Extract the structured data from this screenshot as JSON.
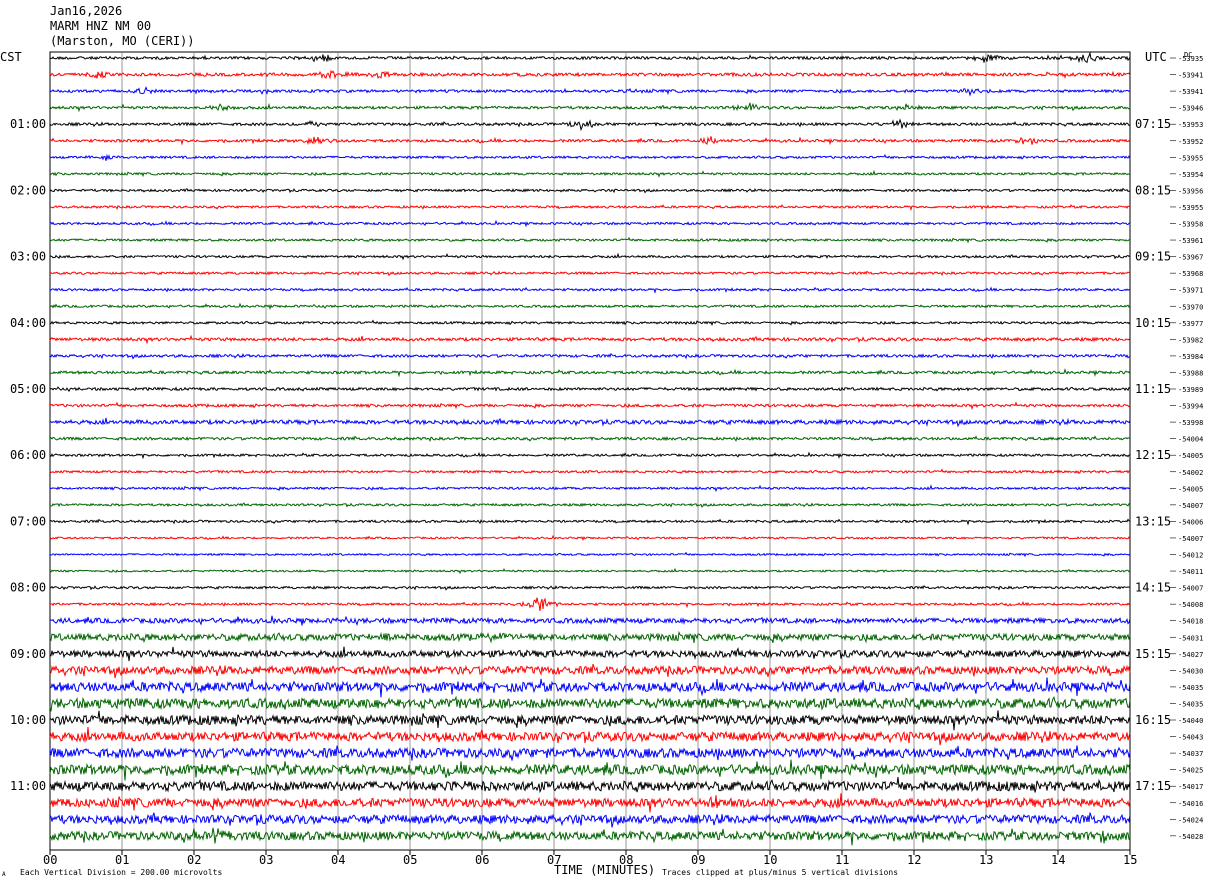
{
  "header": {
    "date": "Jan16,2026",
    "station": "MARM HNZ NM 00",
    "location": "(Marston, MO (CERI))"
  },
  "left_axis_title": "CST",
  "right_axis_title": "UTC",
  "dc_label": "DC",
  "footer": {
    "scale_note": "Each Vertical Division =  200.00 microvolts",
    "clip_note": "Traces clipped at plus/minus 5 vertical divisions",
    "corner_mark": "A"
  },
  "colors": [
    "#000000",
    "#ff0000",
    "#0000ff",
    "#006400"
  ],
  "chart_data": {
    "type": "line",
    "title": "MARM HNZ NM 00",
    "xlabel": "TIME (MINUTES)",
    "x_ticks": [
      "00",
      "01",
      "02",
      "03",
      "04",
      "05",
      "06",
      "07",
      "08",
      "09",
      "10",
      "11",
      "12",
      "13",
      "14",
      "15"
    ],
    "xlim": [
      0,
      15
    ],
    "trace_count": 48,
    "cst_labels": [
      "01:00",
      "02:00",
      "03:00",
      "04:00",
      "05:00",
      "06:00",
      "07:00",
      "08:00",
      "09:00",
      "10:00",
      "11:00"
    ],
    "utc_labels": [
      "07:15",
      "08:15",
      "09:15",
      "10:15",
      "11:15",
      "12:15",
      "13:15",
      "14:15",
      "15:15",
      "16:15",
      "17:15"
    ],
    "dc_offsets": [
      "-53935",
      "-53941",
      "-53941",
      "-53946",
      "-53953",
      "-53952",
      "-53955",
      "-53954",
      "-53956",
      "-53955",
      "-53958",
      "-53961",
      "-53967",
      "-53968",
      "-53971",
      "-53970",
      "-53977",
      "-53982",
      "-53984",
      "-53988",
      "-53989",
      "-53994",
      "-53998",
      "-54004",
      "-54005",
      "-54002",
      "-54005",
      "-54007",
      "-54006",
      "-54007",
      "-54012",
      "-54011",
      "-54007",
      "-54008",
      "-54018",
      "-54031",
      "-54027",
      "-54030",
      "-54035",
      "-54035",
      "-54040",
      "-54043",
      "-54037",
      "-54025",
      "-54017",
      "-54016",
      "-54024",
      "-54028"
    ],
    "noise_level": [
      0.6,
      0.7,
      0.6,
      0.6,
      0.6,
      0.6,
      0.5,
      0.5,
      0.5,
      0.5,
      0.5,
      0.5,
      0.5,
      0.5,
      0.5,
      0.5,
      0.5,
      0.7,
      0.6,
      0.6,
      0.6,
      0.6,
      0.9,
      0.6,
      0.5,
      0.5,
      0.5,
      0.5,
      0.5,
      0.4,
      0.4,
      0.4,
      0.5,
      0.5,
      1.1,
      1.5,
      1.5,
      1.8,
      2.1,
      2.2,
      2.1,
      2.0,
      2.1,
      2.2,
      2.1,
      2.0,
      1.9,
      1.9
    ],
    "events": [
      {
        "trace": 0,
        "minute": 13.0,
        "amp": 7
      },
      {
        "trace": 0,
        "minute": 14.4,
        "amp": 6
      },
      {
        "trace": 0,
        "minute": 3.8,
        "amp": 4
      },
      {
        "trace": 1,
        "minute": 3.9,
        "amp": 5
      },
      {
        "trace": 1,
        "minute": 4.6,
        "amp": 5
      },
      {
        "trace": 1,
        "minute": 0.7,
        "amp": 4
      },
      {
        "trace": 2,
        "minute": 1.3,
        "amp": 4
      },
      {
        "trace": 2,
        "minute": 12.8,
        "amp": 4
      },
      {
        "trace": 3,
        "minute": 2.4,
        "amp": 5
      },
      {
        "trace": 3,
        "minute": 9.7,
        "amp": 5
      },
      {
        "trace": 3,
        "minute": 11.9,
        "amp": 4
      },
      {
        "trace": 4,
        "minute": 7.4,
        "amp": 7
      },
      {
        "trace": 4,
        "minute": 11.8,
        "amp": 6
      },
      {
        "trace": 4,
        "minute": 3.6,
        "amp": 4
      },
      {
        "trace": 5,
        "minute": 3.7,
        "amp": 4
      },
      {
        "trace": 5,
        "minute": 13.6,
        "amp": 5
      },
      {
        "trace": 5,
        "minute": 9.2,
        "amp": 4
      },
      {
        "trace": 6,
        "minute": 0.8,
        "amp": 4
      },
      {
        "trace": 33,
        "minute": 6.8,
        "amp": 10
      },
      {
        "trace": 35,
        "minute": 4.6,
        "amp": 5
      },
      {
        "trace": 35,
        "minute": 6.2,
        "amp": 6
      },
      {
        "trace": 44,
        "minute": 5.8,
        "amp": 6
      },
      {
        "trace": 44,
        "minute": 14.7,
        "amp": 5
      },
      {
        "trace": 45,
        "minute": 9.2,
        "amp": 5
      },
      {
        "trace": 47,
        "minute": 2.3,
        "amp": 9
      },
      {
        "trace": 47,
        "minute": 14.6,
        "amp": 6
      }
    ]
  }
}
